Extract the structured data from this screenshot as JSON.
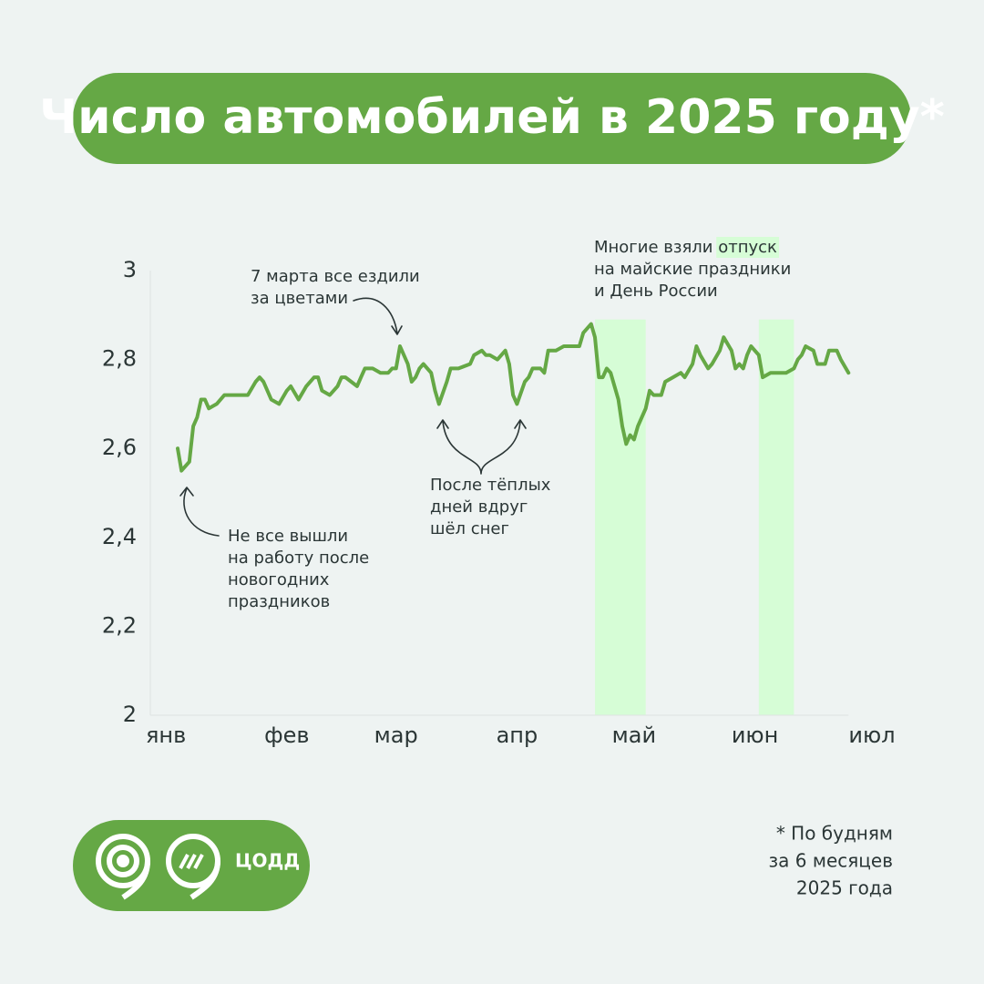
{
  "chart_data": {
    "type": "line",
    "title": "Число автомобилей в 2025 году*",
    "footnote": [
      "* По будням",
      "за 6 месяцев",
      "2025 года"
    ],
    "logo_text": "ЦОДД",
    "color": "#65a845",
    "highlight_color": "#d6fdd6",
    "highlights": [
      [
        110,
        123
      ],
      [
        152,
        161
      ]
    ],
    "xlim": [
      -4,
      181
    ],
    "xticks": [
      {
        "value": 0,
        "label": "янв"
      },
      {
        "value": 31,
        "label": "фев"
      },
      {
        "value": 59,
        "label": "мар"
      },
      {
        "value": 90,
        "label": "апр"
      },
      {
        "value": 120,
        "label": "май"
      },
      {
        "value": 151,
        "label": "июн"
      },
      {
        "value": 181,
        "label": "июл"
      }
    ],
    "ylim": [
      2,
      3
    ],
    "yticks": [
      2,
      {
        "value": 2.2,
        "label": "2,2"
      },
      {
        "value": 2.4,
        "label": "2,4"
      },
      {
        "value": 2.6,
        "label": "2,6"
      },
      {
        "value": 2.8,
        "label": "2,8"
      },
      3
    ],
    "annotations": [
      {
        "lines": [
          "Не все вышли",
          "на работу после",
          "новогодних",
          "праздников"
        ]
      },
      {
        "lines": [
          "7 марта все ездили",
          "за цветами"
        ]
      },
      {
        "lines": [
          "После тёплых",
          "дней вдруг",
          "шёл снег"
        ]
      },
      {
        "before": "Многие взяли",
        "highlight": "отпуск",
        "lines": [
          "на майские праздники",
          "и День России"
        ]
      }
    ],
    "x": [
      3,
      4,
      6,
      7,
      8,
      9,
      10,
      11,
      13,
      15,
      17,
      18,
      19,
      21,
      23,
      24,
      25,
      27,
      29,
      31,
      32,
      34,
      36,
      38,
      39,
      40,
      42,
      44,
      45,
      46,
      49,
      50,
      51,
      53,
      55,
      57,
      58,
      59,
      60,
      62,
      63,
      64,
      65,
      66,
      68,
      69,
      70,
      72,
      73,
      75,
      78,
      79,
      81,
      82,
      83,
      85,
      86,
      87,
      88,
      89,
      90,
      92,
      93,
      94,
      96,
      97,
      98,
      100,
      102,
      104,
      106,
      107,
      109,
      110,
      111,
      112,
      113,
      114,
      116,
      117,
      118,
      119,
      120,
      121,
      123,
      124,
      125,
      127,
      128,
      130,
      132,
      133,
      135,
      136,
      137,
      139,
      140,
      142,
      143,
      145,
      146,
      147,
      148,
      149,
      150,
      152,
      153,
      155,
      157,
      159,
      161,
      162,
      163,
      164,
      166,
      167,
      168,
      169,
      170,
      172,
      173,
      175
    ],
    "values": [
      2.6,
      2.55,
      2.57,
      2.65,
      2.67,
      2.71,
      2.71,
      2.69,
      2.7,
      2.72,
      2.72,
      2.72,
      2.72,
      2.72,
      2.75,
      2.76,
      2.75,
      2.71,
      2.7,
      2.73,
      2.74,
      2.71,
      2.74,
      2.76,
      2.76,
      2.73,
      2.72,
      2.74,
      2.76,
      2.76,
      2.74,
      2.76,
      2.78,
      2.78,
      2.77,
      2.77,
      2.78,
      2.78,
      2.83,
      2.79,
      2.75,
      2.76,
      2.78,
      2.79,
      2.77,
      2.73,
      2.7,
      2.75,
      2.78,
      2.78,
      2.79,
      2.81,
      2.82,
      2.81,
      2.81,
      2.8,
      2.81,
      2.82,
      2.79,
      2.72,
      2.7,
      2.75,
      2.76,
      2.78,
      2.78,
      2.77,
      2.82,
      2.82,
      2.83,
      2.83,
      2.83,
      2.86,
      2.88,
      2.85,
      2.76,
      2.76,
      2.78,
      2.77,
      2.71,
      2.65,
      2.61,
      2.63,
      2.62,
      2.65,
      2.69,
      2.73,
      2.72,
      2.72,
      2.75,
      2.76,
      2.77,
      2.76,
      2.79,
      2.83,
      2.81,
      2.78,
      2.79,
      2.82,
      2.85,
      2.82,
      2.78,
      2.79,
      2.78,
      2.81,
      2.83,
      2.81,
      2.76,
      2.77,
      2.77,
      2.77,
      2.78,
      2.8,
      2.81,
      2.83,
      2.82,
      2.79,
      2.79,
      2.79,
      2.82,
      2.82,
      2.8,
      2.77
    ]
  }
}
